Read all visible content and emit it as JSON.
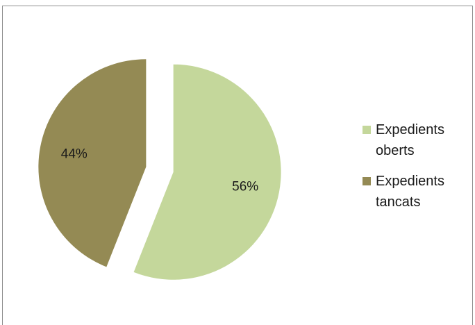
{
  "chart_data": {
    "type": "pie",
    "title": "",
    "slices": [
      {
        "label": "Expedients oberts",
        "value": 56,
        "value_label": "56%",
        "color": "#c4d79b"
      },
      {
        "label": "Expedients tancats",
        "value": 44,
        "value_label": "44%",
        "color": "#948a54"
      }
    ],
    "exploded": true,
    "legend_position": "right"
  }
}
